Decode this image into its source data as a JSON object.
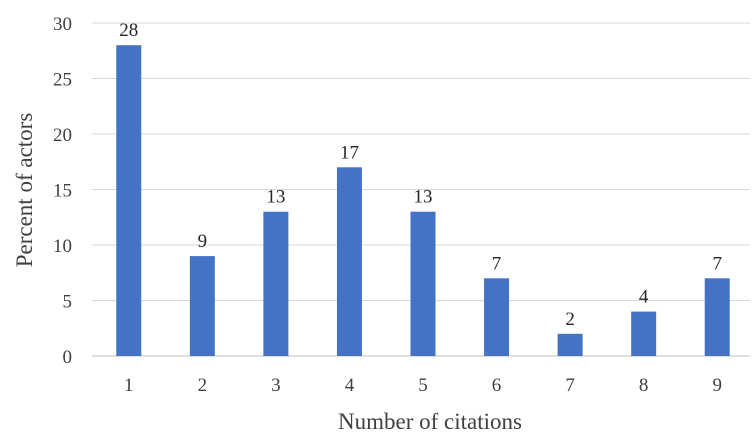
{
  "chart_data": {
    "type": "bar",
    "categories": [
      "1",
      "2",
      "3",
      "4",
      "5",
      "6",
      "7",
      "8",
      "9"
    ],
    "values": [
      28,
      9,
      13,
      17,
      13,
      7,
      2,
      4,
      7
    ],
    "data_labels": [
      "28",
      "9",
      "13",
      "17",
      "13",
      "7",
      "2",
      "4",
      "7"
    ],
    "xlabel": "Number of citations",
    "ylabel": "Percent of actors",
    "ylim": [
      0,
      30
    ],
    "yticks": [
      0,
      5,
      10,
      15,
      20,
      25,
      30
    ],
    "grid": true,
    "legend": "none",
    "bar_color": "#4472c4"
  }
}
